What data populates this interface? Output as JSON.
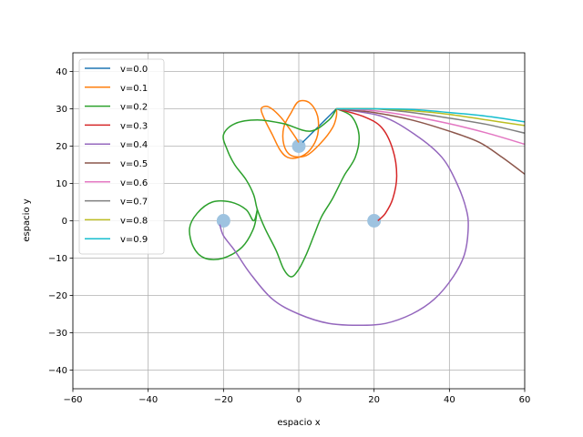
{
  "chart_data": {
    "type": "line",
    "title": "",
    "xlabel": "espacio x",
    "ylabel": "espacio y",
    "xlim": [
      -60,
      60
    ],
    "ylim": [
      -45,
      45
    ],
    "xticks": [
      -60,
      -40,
      -20,
      0,
      20,
      40,
      60
    ],
    "yticks": [
      -40,
      -30,
      -20,
      -10,
      0,
      10,
      20,
      30,
      40
    ],
    "xtick_labels": [
      "−60",
      "−40",
      "−20",
      "0",
      "20",
      "40",
      "60"
    ],
    "ytick_labels": [
      "−40",
      "−30",
      "−20",
      "−10",
      "0",
      "10",
      "20",
      "30",
      "40"
    ],
    "grid": true,
    "legend_placement": "upper-left",
    "attractors": {
      "color": "#9ec3e0",
      "points": [
        [
          0,
          20
        ],
        [
          -20,
          0
        ],
        [
          20,
          0
        ]
      ]
    },
    "series": [
      {
        "name": "v=0.0",
        "color": "#1f77b4",
        "points": [
          [
            10,
            30
          ],
          [
            7,
            27
          ],
          [
            4,
            24
          ],
          [
            1,
            21
          ]
        ]
      },
      {
        "name": "v=0.1",
        "color": "#ff7f0e",
        "points": [
          [
            10,
            30
          ],
          [
            10,
            28
          ],
          [
            9,
            25
          ],
          [
            6,
            21
          ],
          [
            2,
            17.5
          ],
          [
            -2,
            17.5
          ],
          [
            -4,
            20.5
          ],
          [
            -4,
            25
          ],
          [
            -2,
            29
          ],
          [
            0,
            32
          ],
          [
            3,
            31.5
          ],
          [
            5,
            28
          ],
          [
            5,
            23
          ],
          [
            3,
            19
          ],
          [
            0,
            17
          ],
          [
            -3,
            17
          ],
          [
            -5,
            19
          ],
          [
            -7,
            23
          ],
          [
            -9,
            27
          ],
          [
            -10,
            30
          ],
          [
            -8,
            30.5
          ],
          [
            -5,
            28
          ],
          [
            -2,
            24
          ],
          [
            0,
            21
          ]
        ]
      },
      {
        "name": "v=0.2",
        "color": "#2ca02c",
        "points": [
          [
            10,
            30
          ],
          [
            14,
            28
          ],
          [
            16,
            23
          ],
          [
            15,
            17
          ],
          [
            12,
            12
          ],
          [
            9,
            6
          ],
          [
            6,
            1
          ],
          [
            4,
            -4
          ],
          [
            2,
            -9
          ],
          [
            0,
            -13
          ],
          [
            -2,
            -15
          ],
          [
            -4,
            -13
          ],
          [
            -6,
            -8
          ],
          [
            -9,
            -2
          ],
          [
            -11,
            3
          ],
          [
            -12,
            7
          ],
          [
            -14,
            11
          ],
          [
            -17,
            15
          ],
          [
            -19,
            19
          ],
          [
            -20,
            23
          ],
          [
            -17,
            26
          ],
          [
            -11,
            27
          ],
          [
            -4,
            26
          ],
          [
            3,
            24
          ],
          [
            8,
            27
          ],
          [
            10,
            30
          ]
        ]
      },
      {
        "name": "v=0.2",
        "color": "#2ca02c",
        "legend": false,
        "points": [
          [
            -11,
            3
          ],
          [
            -12,
            -2
          ],
          [
            -15,
            -7
          ],
          [
            -20,
            -10
          ],
          [
            -25,
            -10
          ],
          [
            -28,
            -7
          ],
          [
            -29,
            -2
          ],
          [
            -27,
            2
          ],
          [
            -23,
            5
          ],
          [
            -18,
            5
          ],
          [
            -14,
            3
          ],
          [
            -12,
            0
          ],
          [
            -11,
            3
          ]
        ]
      },
      {
        "name": "v=0.3",
        "color": "#d62728",
        "points": [
          [
            10,
            30
          ],
          [
            17,
            28
          ],
          [
            22,
            25
          ],
          [
            25,
            19
          ],
          [
            26,
            12
          ],
          [
            25,
            6
          ],
          [
            23,
            2
          ],
          [
            21,
            0
          ]
        ]
      },
      {
        "name": "v=0.4",
        "color": "#9467bd",
        "points": [
          [
            10,
            30
          ],
          [
            22,
            28
          ],
          [
            31,
            23
          ],
          [
            38,
            17
          ],
          [
            42,
            10
          ],
          [
            44.5,
            3
          ],
          [
            45,
            -2
          ],
          [
            44,
            -9
          ],
          [
            41,
            -15
          ],
          [
            36,
            -21
          ],
          [
            30,
            -25
          ],
          [
            23,
            -27.5
          ],
          [
            16,
            -28
          ],
          [
            8,
            -27.5
          ],
          [
            0,
            -25
          ],
          [
            -7,
            -21
          ],
          [
            -13,
            -14
          ],
          [
            -17,
            -8
          ],
          [
            -20,
            -4
          ],
          [
            -21,
            -1
          ]
        ]
      },
      {
        "name": "v=0.5",
        "color": "#8c564b",
        "points": [
          [
            10,
            30
          ],
          [
            20,
            29
          ],
          [
            30,
            27
          ],
          [
            40,
            24
          ],
          [
            48,
            21
          ],
          [
            54,
            17
          ],
          [
            60,
            12.5
          ]
        ]
      },
      {
        "name": "v=0.6",
        "color": "#e377c2",
        "points": [
          [
            10,
            30
          ],
          [
            20,
            29.5
          ],
          [
            30,
            28
          ],
          [
            40,
            26
          ],
          [
            50,
            23.5
          ],
          [
            60,
            20.5
          ]
        ]
      },
      {
        "name": "v=0.7",
        "color": "#7f7f7f",
        "points": [
          [
            10,
            30
          ],
          [
            20,
            30
          ],
          [
            30,
            29
          ],
          [
            40,
            27.5
          ],
          [
            50,
            25.8
          ],
          [
            60,
            23.5
          ]
        ]
      },
      {
        "name": "v=0.8",
        "color": "#bcbd22",
        "points": [
          [
            10,
            30
          ],
          [
            20,
            30
          ],
          [
            30,
            29.5
          ],
          [
            40,
            28.5
          ],
          [
            50,
            27
          ],
          [
            60,
            25.5
          ]
        ]
      },
      {
        "name": "v=0.9",
        "color": "#17becf",
        "points": [
          [
            10,
            30
          ],
          [
            20,
            30
          ],
          [
            30,
            29.8
          ],
          [
            40,
            29
          ],
          [
            50,
            28
          ],
          [
            60,
            26.5
          ]
        ]
      }
    ]
  }
}
